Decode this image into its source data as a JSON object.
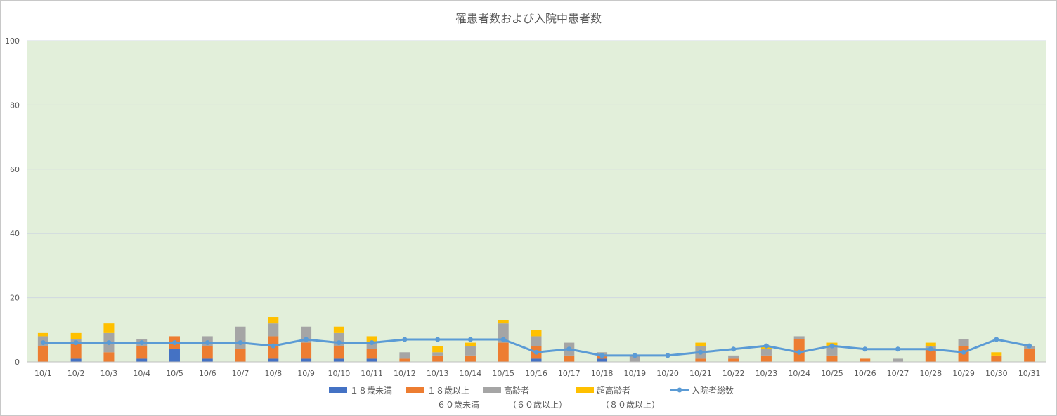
{
  "chart_data": {
    "type": "bar",
    "title": "罹患者数および入院中患者数",
    "ylim": [
      0,
      100
    ],
    "yticks": [
      0,
      20,
      40,
      60,
      80,
      100
    ],
    "categories": [
      "10/1",
      "10/2",
      "10/3",
      "10/4",
      "10/5",
      "10/6",
      "10/7",
      "10/8",
      "10/9",
      "10/10",
      "10/11",
      "10/12",
      "10/13",
      "10/14",
      "10/15",
      "10/16",
      "10/17",
      "10/18",
      "10/19",
      "10/20",
      "10/21",
      "10/22",
      "10/23",
      "10/24",
      "10/25",
      "10/26",
      "10/27",
      "10/28",
      "10/29",
      "10/30",
      "10/31"
    ],
    "series": [
      {
        "name": "１８歳未満",
        "name2": "",
        "type": "bar",
        "color": "#4472c4",
        "values": [
          0,
          1,
          0,
          1,
          4,
          1,
          0,
          1,
          1,
          1,
          1,
          0,
          0,
          0,
          0,
          1,
          0,
          1,
          0,
          0,
          0,
          0,
          0,
          0,
          0,
          0,
          0,
          0,
          0,
          0,
          0
        ]
      },
      {
        "name": "１８歳以上",
        "name2": "６０歳未満",
        "type": "bar",
        "color": "#ed7d31",
        "values": [
          5,
          5,
          3,
          4,
          4,
          4,
          4,
          7,
          5,
          4,
          3,
          1,
          2,
          2,
          6,
          4,
          2,
          1,
          0,
          0,
          1,
          1,
          2,
          7,
          2,
          1,
          0,
          4,
          5,
          2,
          4
        ]
      },
      {
        "name": "高齢者",
        "name2": "（６０歳以上）",
        "type": "bar",
        "color": "#a5a5a5",
        "values": [
          3,
          1,
          6,
          2,
          0,
          3,
          7,
          4,
          5,
          4,
          2,
          2,
          1,
          3,
          6,
          3,
          4,
          1,
          2,
          0,
          4,
          1,
          2,
          1,
          3,
          0,
          1,
          1,
          2,
          0,
          1
        ]
      },
      {
        "name": "超高齢者",
        "name2": "（８０歳以上）",
        "type": "bar",
        "color": "#ffc000",
        "values": [
          1,
          2,
          3,
          0,
          0,
          0,
          0,
          2,
          0,
          2,
          2,
          0,
          2,
          1,
          1,
          2,
          0,
          0,
          0,
          0,
          1,
          0,
          1,
          0,
          1,
          0,
          0,
          1,
          0,
          1,
          0
        ]
      },
      {
        "name": "入院者総数",
        "name2": "",
        "type": "line",
        "color": "#5b9bd5",
        "values": [
          6,
          6,
          6,
          6,
          6,
          6,
          6,
          5,
          7,
          6,
          6,
          7,
          7,
          7,
          7,
          3,
          4,
          2,
          2,
          2,
          3,
          4,
          5,
          3,
          5,
          4,
          4,
          4,
          3,
          7,
          5
        ]
      }
    ],
    "plot_background": "#e2efda",
    "grid": true,
    "legend_position": "bottom"
  }
}
